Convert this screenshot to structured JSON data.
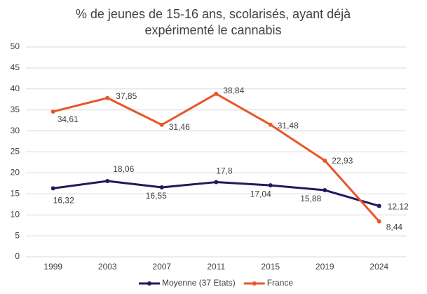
{
  "chart_data": {
    "type": "line",
    "title": "% de jeunes de 15-16 ans, scolarisés, ayant déjà expérimenté le cannabis",
    "categories": [
      "1999",
      "2003",
      "2007",
      "2011",
      "2015",
      "2019",
      "2024"
    ],
    "series": [
      {
        "name": "Moyenne (37 Etats)",
        "color": "#1f1b5e",
        "values": [
          16.32,
          18.06,
          16.55,
          17.8,
          17.04,
          15.88,
          12.12
        ],
        "value_labels": [
          "16,32",
          "18,06",
          "16,55",
          "17,8",
          "17,04",
          "15,88",
          "12,12"
        ]
      },
      {
        "name": "France",
        "color": "#e8562a",
        "values": [
          34.61,
          37.85,
          31.46,
          38.84,
          31.48,
          22.93,
          8.44
        ],
        "value_labels": [
          "34,61",
          "37,85",
          "31,46",
          "38,84",
          "31,48",
          "22,93",
          "8,44"
        ]
      }
    ],
    "ylim": [
      0,
      50
    ],
    "yticks": [
      0,
      5,
      10,
      15,
      20,
      25,
      30,
      35,
      40,
      45,
      50
    ],
    "grid": true,
    "legend": "bottom"
  }
}
